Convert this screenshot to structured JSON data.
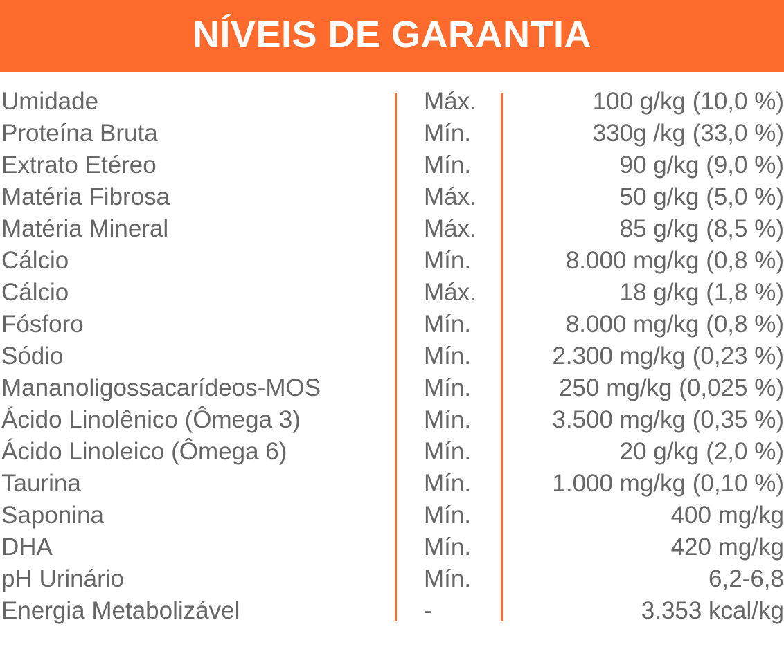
{
  "header": {
    "title": "NÍVEIS DE GARANTIA"
  },
  "colors": {
    "accent": "#ff6b2c",
    "text": "#666666",
    "background": "#ffffff"
  },
  "rows": [
    {
      "name": "Umidade",
      "qualifier": "Máx.",
      "value": "100 g/kg (10,0 %)"
    },
    {
      "name": "Proteína Bruta",
      "qualifier": "Mín.",
      "value": "330g /kg (33,0 %)"
    },
    {
      "name": "Extrato Etéreo",
      "qualifier": "Mín.",
      "value": "90 g/kg (9,0 %)"
    },
    {
      "name": "Matéria Fibrosa",
      "qualifier": "Máx.",
      "value": "50 g/kg (5,0 %)"
    },
    {
      "name": "Matéria Mineral",
      "qualifier": "Máx.",
      "value": "85 g/kg (8,5 %)"
    },
    {
      "name": "Cálcio",
      "qualifier": "Mín.",
      "value": "8.000 mg/kg (0,8 %)"
    },
    {
      "name": "Cálcio",
      "qualifier": "Máx.",
      "value": "18 g/kg (1,8 %)"
    },
    {
      "name": "Fósforo",
      "qualifier": "Mín.",
      "value": "8.000 mg/kg (0,8 %)"
    },
    {
      "name": "Sódio",
      "qualifier": "Mín.",
      "value": "2.300 mg/kg (0,23 %)"
    },
    {
      "name": "Mananoligossacarídeos-MOS",
      "qualifier": "Mín.",
      "value": "250 mg/kg (0,025 %)"
    },
    {
      "name": "Ácido Linolênico (Ômega 3)",
      "qualifier": "Mín.",
      "value": "3.500 mg/kg (0,35 %)"
    },
    {
      "name": "Ácido Linoleico (Ômega 6)",
      "qualifier": "Mín.",
      "value": "20 g/kg (2,0 %)"
    },
    {
      "name": "Taurina",
      "qualifier": "Mín.",
      "value": "1.000 mg/kg (0,10 %)"
    },
    {
      "name": "Saponina",
      "qualifier": "Mín.",
      "value": "400 mg/kg"
    },
    {
      "name": "DHA",
      "qualifier": "Mín.",
      "value": "420 mg/kg"
    },
    {
      "name": "pH Urinário",
      "qualifier": "Mín.",
      "value": "6,2-6,8"
    },
    {
      "name": "Energia Metabolizável",
      "qualifier": "-",
      "value": "3.353 kcal/kg"
    }
  ]
}
